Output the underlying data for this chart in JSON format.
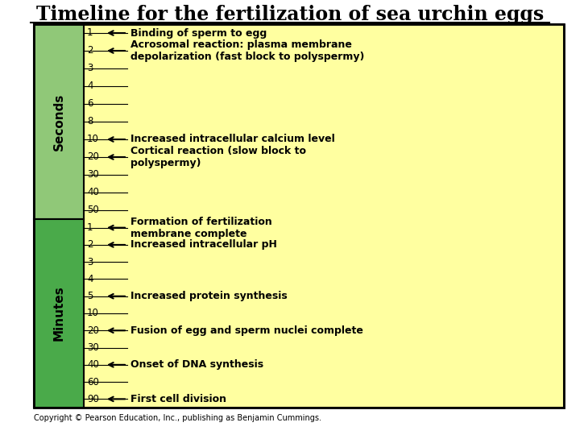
{
  "title": "Timeline for the fertilization of sea urchin eggs",
  "background_color": "#ffffff",
  "yellow_box_color": "#FFFFA0",
  "seconds_bar_color": "#90C878",
  "minutes_bar_color": "#4AAA4A",
  "seconds_ticks": [
    "1",
    "2",
    "3",
    "4",
    "6",
    "8",
    "10",
    "20",
    "30",
    "40",
    "50"
  ],
  "minutes_ticks": [
    "1",
    "2",
    "3",
    "4",
    "5",
    "10",
    "20",
    "30",
    "40",
    "60",
    "90"
  ],
  "arrow_ticks_seconds": [
    "1",
    "2",
    "10",
    "20"
  ],
  "arrow_ticks_minutes": [
    "1",
    "2",
    "5",
    "20",
    "40",
    "90"
  ],
  "events": [
    {
      "tick": "1",
      "unit": "seconds",
      "label": "Binding of sperm to egg"
    },
    {
      "tick": "2",
      "unit": "seconds",
      "label": "Acrosomal reaction: plasma membrane\ndepolarization (fast block to polyspermy)"
    },
    {
      "tick": "10",
      "unit": "seconds",
      "label": "Increased intracellular calcium level"
    },
    {
      "tick": "20",
      "unit": "seconds",
      "label": "Cortical reaction (slow block to\npolyspermy)"
    },
    {
      "tick": "1",
      "unit": "minutes",
      "label": "Formation of fertilization\nmembrane complete"
    },
    {
      "tick": "2",
      "unit": "minutes",
      "label": "Increased intracellular pH"
    },
    {
      "tick": "5",
      "unit": "minutes",
      "label": "Increased protein synthesis"
    },
    {
      "tick": "20",
      "unit": "minutes",
      "label": "Fusion of egg and sperm nuclei complete"
    },
    {
      "tick": "40",
      "unit": "minutes",
      "label": "Onset of DNA synthesis"
    },
    {
      "tick": "90",
      "unit": "minutes",
      "label": "First cell division"
    }
  ],
  "copyright": "Copyright © Pearson Education, Inc., publishing as Benjamin Cummings."
}
